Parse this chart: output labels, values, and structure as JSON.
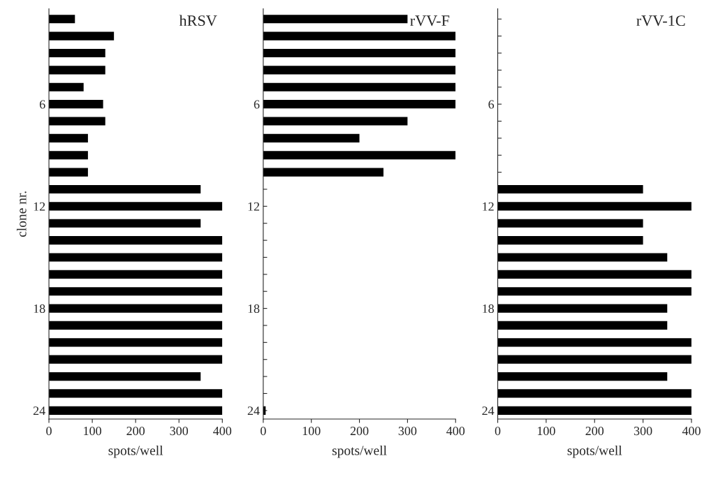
{
  "chart_data": [
    {
      "type": "bar",
      "orientation": "horizontal",
      "title": "hRSV",
      "xlabel": "spots/well",
      "ylabel": "clone nr.",
      "categories": [
        null,
        null,
        null,
        null,
        null,
        "6",
        null,
        null,
        null,
        null,
        null,
        "12",
        null,
        null,
        null,
        null,
        null,
        "18",
        null,
        null,
        null,
        null,
        null,
        "24"
      ],
      "values": [
        60,
        150,
        130,
        130,
        80,
        125,
        130,
        90,
        90,
        90,
        350,
        400,
        350,
        400,
        400,
        400,
        400,
        400,
        400,
        400,
        400,
        350,
        400,
        400
      ],
      "color": "#000000",
      "xlim": [
        0,
        400
      ],
      "xticks": [
        0,
        100,
        200,
        300,
        400
      ],
      "grid": false,
      "legend": false
    },
    {
      "type": "bar",
      "orientation": "horizontal",
      "title": "rVV-F",
      "xlabel": "spots/well",
      "categories": [
        null,
        null,
        null,
        null,
        null,
        "6",
        null,
        null,
        null,
        null,
        null,
        "12",
        null,
        null,
        null,
        null,
        null,
        "18",
        null,
        null,
        null,
        null,
        null,
        "24"
      ],
      "values": [
        300,
        400,
        400,
        400,
        400,
        400,
        300,
        200,
        400,
        250,
        null,
        null,
        null,
        null,
        null,
        null,
        null,
        null,
        null,
        null,
        null,
        null,
        null,
        5
      ],
      "color": "#000000",
      "xlim": [
        0,
        400
      ],
      "xticks": [
        0,
        100,
        200,
        300,
        400
      ],
      "grid": false,
      "legend": false
    },
    {
      "type": "bar",
      "orientation": "horizontal",
      "title": "rVV-1C",
      "xlabel": "spots/well",
      "categories": [
        null,
        null,
        null,
        null,
        null,
        "6",
        null,
        null,
        null,
        null,
        null,
        "12",
        null,
        null,
        null,
        null,
        null,
        "18",
        null,
        null,
        null,
        null,
        null,
        "24"
      ],
      "values": [
        null,
        null,
        null,
        null,
        null,
        null,
        null,
        null,
        null,
        null,
        300,
        400,
        300,
        300,
        350,
        400,
        400,
        350,
        350,
        400,
        400,
        350,
        400,
        400
      ],
      "color": "#000000",
      "xlim": [
        0,
        400
      ],
      "xticks": [
        0,
        100,
        200,
        300,
        400
      ],
      "grid": false,
      "legend": false
    }
  ]
}
